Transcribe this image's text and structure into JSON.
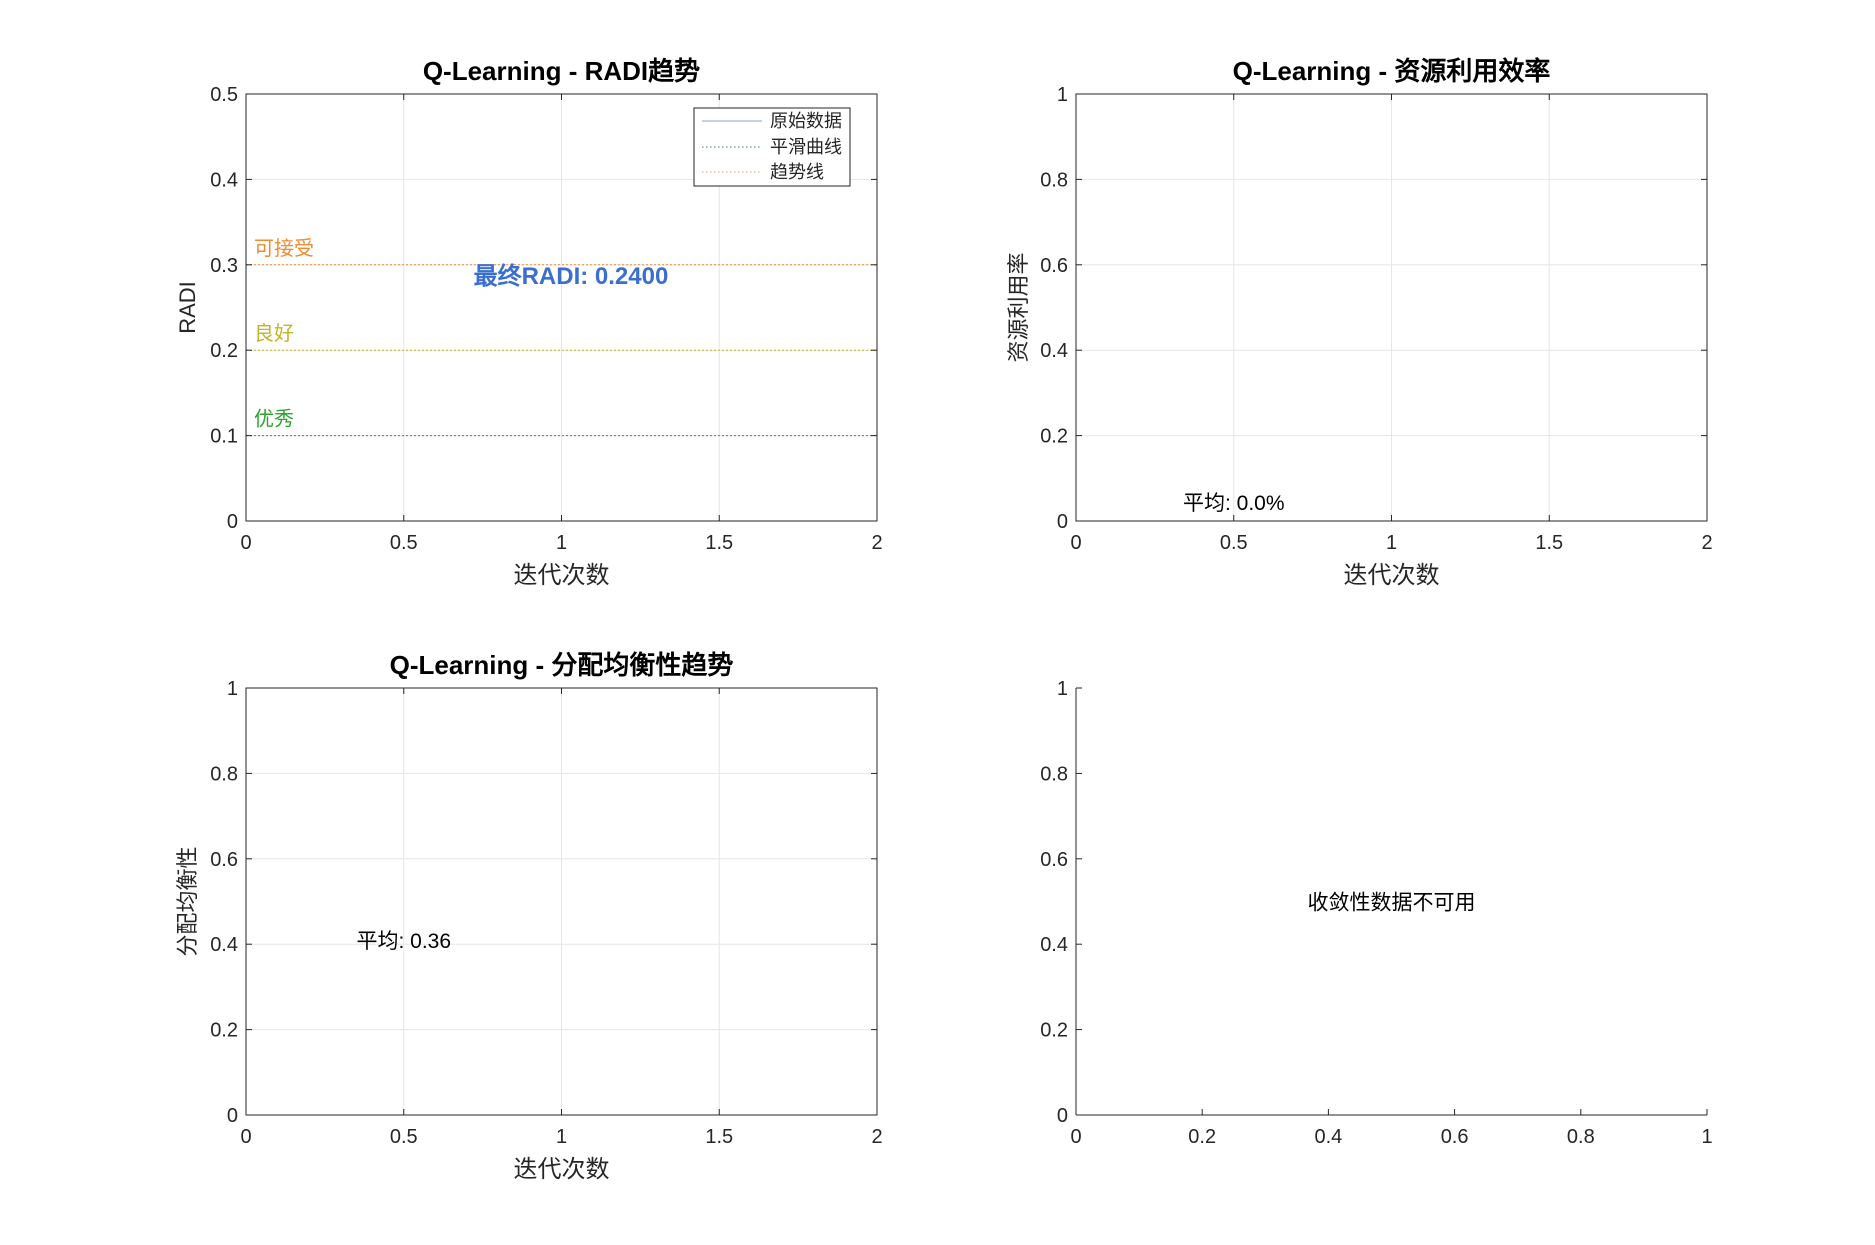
{
  "figure": {
    "background": "#ffffff"
  },
  "chart_data": [
    {
      "id": "radi",
      "type": "line",
      "title": "Q-Learning - RADI趋势",
      "xlabel": "迭代次数",
      "ylabel": "RADI",
      "xlim": [
        0,
        2
      ],
      "ylim": [
        0,
        0.5
      ],
      "xticks": [
        0,
        0.5,
        1,
        1.5,
        2
      ],
      "xtick_labels": [
        "0",
        "0.5",
        "1",
        "1.5",
        "2"
      ],
      "yticks": [
        0,
        0.1,
        0.2,
        0.3,
        0.4,
        0.5
      ],
      "ytick_labels": [
        "0",
        "0.1",
        "0.2",
        "0.3",
        "0.4",
        "0.5"
      ],
      "grid": true,
      "legend_position": "top-right",
      "series": [
        {
          "name": "原始数据",
          "color": "#9fb8d6",
          "dash": "solid",
          "x": [],
          "y": []
        },
        {
          "name": "平滑曲线",
          "color": "#5a9a8a",
          "dash": "dotted",
          "x": [],
          "y": []
        },
        {
          "name": "趋势线",
          "color": "#d8b98a",
          "dash": "dotted",
          "x": [],
          "y": []
        }
      ],
      "reference_lines": [
        {
          "y": 0.3,
          "label": "可接受",
          "color": "#ee8c33"
        },
        {
          "y": 0.2,
          "label": "良好",
          "color": "#c2b529"
        },
        {
          "y": 0.1,
          "label": "优秀",
          "color": "#2ea12e"
        }
      ],
      "annotations": [
        {
          "text": "最终RADI: 0.2400",
          "x": 1.03,
          "y": 0.287,
          "color": "#3a6fd1",
          "bold": true
        }
      ]
    },
    {
      "id": "util",
      "type": "line",
      "title": "Q-Learning - 资源利用效率",
      "xlabel": "迭代次数",
      "ylabel": "资源利用率",
      "xlim": [
        0,
        2
      ],
      "ylim": [
        0,
        1
      ],
      "xticks": [
        0,
        0.5,
        1,
        1.5,
        2
      ],
      "xtick_labels": [
        "0",
        "0.5",
        "1",
        "1.5",
        "2"
      ],
      "yticks": [
        0,
        0.2,
        0.4,
        0.6,
        0.8,
        1
      ],
      "ytick_labels": [
        "0",
        "0.2",
        "0.4",
        "0.6",
        "0.8",
        "1"
      ],
      "grid": true,
      "series": [],
      "reference_lines": [],
      "annotations": [
        {
          "text": "平均: 0.0%",
          "x": 0.5,
          "y": 0.045,
          "color": "#000000",
          "bold": false
        }
      ]
    },
    {
      "id": "balance",
      "type": "line",
      "title": "Q-Learning - 分配均衡性趋势",
      "xlabel": "迭代次数",
      "ylabel": "分配均衡性",
      "xlim": [
        0,
        2
      ],
      "ylim": [
        0,
        1
      ],
      "xticks": [
        0,
        0.5,
        1,
        1.5,
        2
      ],
      "xtick_labels": [
        "0",
        "0.5",
        "1",
        "1.5",
        "2"
      ],
      "yticks": [
        0,
        0.2,
        0.4,
        0.6,
        0.8,
        1
      ],
      "ytick_labels": [
        "0",
        "0.2",
        "0.4",
        "0.6",
        "0.8",
        "1"
      ],
      "grid": true,
      "series": [],
      "reference_lines": [],
      "annotations": [
        {
          "text": "平均: 0.36",
          "x": 0.5,
          "y": 0.41,
          "color": "#000000",
          "bold": false
        }
      ]
    },
    {
      "id": "convergence",
      "type": "line",
      "title": "",
      "xlabel": "",
      "ylabel": "",
      "xlim": [
        0,
        1
      ],
      "ylim": [
        0,
        1
      ],
      "xticks": [
        0,
        0.2,
        0.4,
        0.6,
        0.8,
        1
      ],
      "xtick_labels": [
        "0",
        "0.2",
        "0.4",
        "0.6",
        "0.8",
        "1"
      ],
      "yticks": [
        0,
        0.2,
        0.4,
        0.6,
        0.8,
        1
      ],
      "ytick_labels": [
        "0",
        "0.2",
        "0.4",
        "0.6",
        "0.8",
        "1"
      ],
      "grid": false,
      "box": false,
      "series": [],
      "reference_lines": [],
      "annotations": [
        {
          "text": "收敛性数据不可用",
          "x": 0.5,
          "y": 0.5,
          "color": "#000000",
          "bold": false
        }
      ]
    }
  ]
}
